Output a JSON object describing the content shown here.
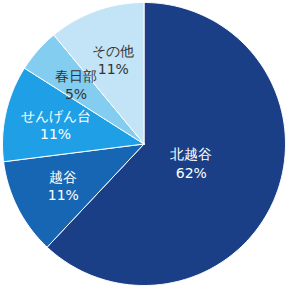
{
  "chart_data": {
    "type": "pie",
    "categories": [
      "北越谷",
      "越谷",
      "せんげん台",
      "春日部",
      "その他"
    ],
    "values": [
      62,
      11,
      11,
      5,
      11
    ],
    "value_labels": [
      "62%",
      "11%",
      "11%",
      "5%",
      "11%"
    ],
    "colors": [
      "#1b3f87",
      "#1766b3",
      "#1fa0e6",
      "#82cdf0",
      "#c2e4f6"
    ],
    "data_labels": true
  }
}
